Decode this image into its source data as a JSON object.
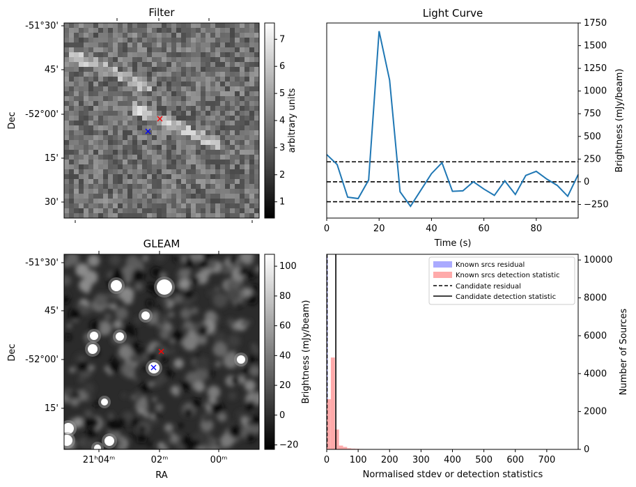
{
  "chart_data": [
    {
      "type": "image",
      "title": "Filter",
      "ylabel": "Dec",
      "y_ticks": [
        "-51°30'",
        "45'",
        "-52°00'",
        "15'",
        "30'"
      ],
      "colorbar": {
        "label": "arbitrary units",
        "ticks": [
          1,
          2,
          3,
          4,
          5,
          6,
          7
        ],
        "range": [
          0.4,
          7.6
        ]
      },
      "markers": [
        {
          "color": "#ff0000",
          "symbol": "x"
        },
        {
          "color": "#0000ff",
          "symbol": "x"
        }
      ],
      "colormap": "gray"
    },
    {
      "type": "line",
      "title": "Light Curve",
      "xlabel": "Time (s)",
      "ylabel": "Brightness (mJy/beam)",
      "xlim": [
        0,
        96
      ],
      "ylim": [
        -400,
        1750
      ],
      "x_ticks": [
        0,
        20,
        40,
        60,
        80
      ],
      "y_ticks": [
        -250,
        0,
        250,
        500,
        750,
        1000,
        1250,
        1500,
        1750
      ],
      "x": [
        0,
        4,
        8,
        12,
        16,
        20,
        24,
        28,
        32,
        36,
        40,
        44,
        48,
        52,
        56,
        60,
        64,
        68,
        72,
        76,
        80,
        84,
        88,
        92,
        96
      ],
      "values": [
        300,
        190,
        -170,
        -185,
        20,
        1660,
        1120,
        -110,
        -270,
        -90,
        90,
        210,
        -105,
        -100,
        0,
        -80,
        -150,
        10,
        -140,
        70,
        115,
        30,
        -40,
        -160,
        80
      ],
      "color": "#1f77b4",
      "hlines": [
        220,
        0,
        -220
      ]
    },
    {
      "type": "image",
      "title": "GLEAM",
      "xlabel": "RA",
      "ylabel": "Dec",
      "x_ticks": [
        "21ʰ04ᵐ",
        "02ᵐ",
        "00ᵐ"
      ],
      "y_ticks": [
        "-51°30'",
        "45'",
        "-52°00'",
        "15'"
      ],
      "colorbar": {
        "label": "Brightness (mJy/beam)",
        "ticks": [
          -20,
          0,
          20,
          40,
          60,
          80,
          100
        ],
        "range": [
          -23,
          108
        ]
      },
      "markers": [
        {
          "color": "#ff0000",
          "symbol": "x"
        },
        {
          "color": "#0000ff",
          "symbol": "x"
        }
      ],
      "colormap": "gray"
    },
    {
      "type": "histogram",
      "xlabel": "Normalised stdev or detection statistics",
      "ylabel_left": "Brightness (mJy/beam)",
      "ylabel": "Number of Sources",
      "xlim": [
        0,
        800
      ],
      "ylim": [
        0,
        10300
      ],
      "x_ticks": [
        0,
        100,
        200,
        300,
        400,
        500,
        600,
        700
      ],
      "y_ticks": [
        0,
        2000,
        4000,
        6000,
        8000,
        10000
      ],
      "bin_width": 13,
      "series": [
        {
          "name": "Known srcs residual",
          "color": "#aaaaff",
          "values": [
            10200
          ]
        },
        {
          "name": "Known srcs detection statistic",
          "color": "#ffaaaa",
          "values": [
            2650,
            4850,
            1050,
            200,
            130,
            60,
            40,
            30,
            20,
            10,
            10,
            5,
            5,
            5,
            5,
            5,
            5,
            5,
            5,
            5,
            5,
            5,
            5,
            5,
            5,
            5,
            5,
            5,
            5,
            5,
            5,
            5,
            5,
            10,
            15,
            10,
            5,
            5,
            5,
            5,
            5,
            5,
            5,
            5,
            5,
            5,
            5,
            5,
            5,
            5,
            5,
            5,
            5,
            5,
            5,
            5,
            5,
            5,
            10,
            5
          ]
        }
      ],
      "vlines": [
        {
          "name": "Candidate residual",
          "x": 1,
          "style": "dashed"
        },
        {
          "name": "Candidate detection statistic",
          "x": 29,
          "style": "solid"
        }
      ],
      "legend": "top-right"
    }
  ]
}
